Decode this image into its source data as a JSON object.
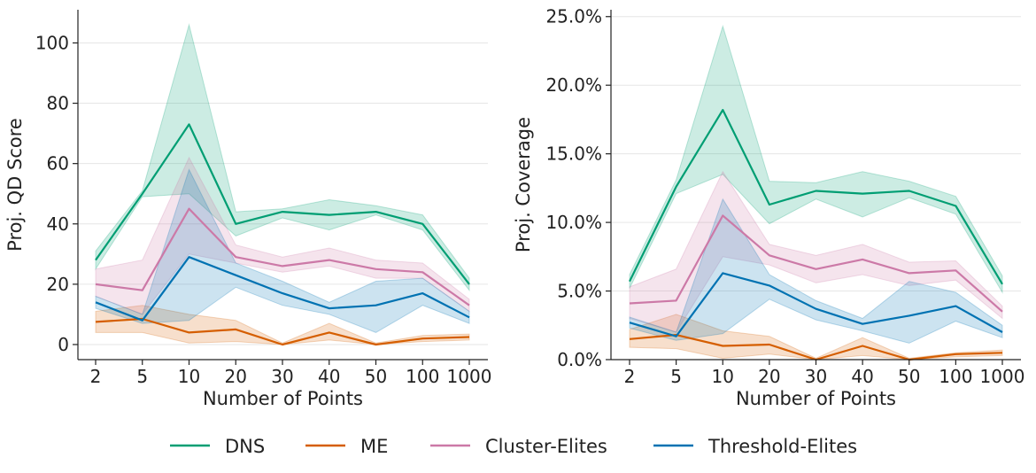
{
  "chart_data": [
    {
      "type": "line",
      "xlabel": "Number of Points",
      "ylabel": "Proj. QD Score",
      "categories": [
        "2",
        "5",
        "10",
        "20",
        "30",
        "40",
        "50",
        "100",
        "1000"
      ],
      "ylim": [
        -5,
        111
      ],
      "yticks": [
        0,
        20,
        40,
        60,
        80,
        100
      ],
      "ytick_labels": [
        "0",
        "20",
        "40",
        "60",
        "80",
        "100"
      ],
      "grid": "horizontal",
      "series": [
        {
          "name": "DNS",
          "color": "#009e73",
          "values": [
            28,
            50,
            73,
            40,
            44,
            43,
            44,
            40,
            20
          ],
          "lower": [
            25,
            49,
            50,
            36,
            42,
            38,
            43,
            38,
            18
          ],
          "upper": [
            31,
            51,
            106,
            44,
            45,
            48,
            46,
            43,
            22
          ]
        },
        {
          "name": "ME",
          "color": "#d55e00",
          "values": [
            7.5,
            8.5,
            4,
            5,
            0,
            4,
            0,
            2,
            2.5
          ],
          "lower": [
            4,
            4,
            0.5,
            1,
            0,
            1.5,
            0,
            1,
            1.5
          ],
          "upper": [
            11,
            13,
            10,
            8,
            0.5,
            7,
            0.5,
            3,
            3.5
          ]
        },
        {
          "name": "Cluster-Elites",
          "color": "#cc79a7",
          "values": [
            20,
            18,
            45,
            29,
            26,
            28,
            25,
            24,
            13
          ],
          "lower": [
            16,
            10,
            30,
            27,
            24,
            26,
            22,
            22,
            11
          ],
          "upper": [
            25,
            28,
            62,
            33,
            29,
            32,
            28,
            27,
            15
          ]
        },
        {
          "name": "Threshold-Elites",
          "color": "#0072b2",
          "values": [
            14,
            8,
            29,
            23,
            17,
            12,
            13,
            17,
            9
          ],
          "lower": [
            12,
            7,
            8,
            19,
            13,
            10,
            4,
            13,
            7
          ],
          "upper": [
            16,
            10,
            58,
            27,
            21,
            14,
            21,
            22,
            11
          ]
        }
      ]
    },
    {
      "type": "line",
      "xlabel": "Number of Points",
      "ylabel": "Proj. Coverage",
      "categories": [
        "2",
        "5",
        "10",
        "20",
        "30",
        "40",
        "50",
        "100",
        "1000"
      ],
      "ylim": [
        0,
        25.5
      ],
      "yticks": [
        0,
        5,
        10,
        15,
        20,
        25
      ],
      "ytick_labels": [
        "0.0%",
        "5.0%",
        "10.0%",
        "15.0%",
        "20.0%",
        "25.0%"
      ],
      "grid": "horizontal",
      "series": [
        {
          "name": "DNS",
          "color": "#009e73",
          "values": [
            5.7,
            12.6,
            18.2,
            11.3,
            12.3,
            12.1,
            12.3,
            11.2,
            5.5
          ],
          "lower": [
            5.2,
            12.1,
            13.5,
            9.9,
            11.7,
            10.4,
            11.8,
            10.6,
            4.9
          ],
          "upper": [
            6.2,
            13.1,
            24.3,
            13.0,
            12.9,
            13.7,
            13.0,
            11.9,
            6.1
          ]
        },
        {
          "name": "ME",
          "color": "#d55e00",
          "values": [
            1.5,
            1.8,
            1.0,
            1.1,
            0,
            1.0,
            0,
            0.4,
            0.5
          ],
          "lower": [
            0.9,
            0.8,
            0.1,
            0.4,
            0,
            0.3,
            0,
            0.2,
            0.3
          ],
          "upper": [
            2.2,
            3.3,
            2.1,
            1.7,
            0.1,
            1.6,
            0.1,
            0.5,
            0.7
          ]
        },
        {
          "name": "Cluster-Elites",
          "color": "#cc79a7",
          "values": [
            4.1,
            4.3,
            10.5,
            7.6,
            6.6,
            7.3,
            6.3,
            6.5,
            3.5
          ],
          "lower": [
            3.0,
            2.0,
            7.5,
            6.9,
            5.6,
            6.2,
            5.4,
            5.8,
            3.0
          ],
          "upper": [
            5.3,
            6.6,
            13.7,
            8.4,
            7.6,
            8.4,
            7.1,
            7.2,
            3.9
          ]
        },
        {
          "name": "Threshold-Elites",
          "color": "#0072b2",
          "values": [
            2.7,
            1.7,
            6.3,
            5.4,
            3.7,
            2.6,
            3.2,
            3.9,
            2.0
          ],
          "lower": [
            2.3,
            1.4,
            1.9,
            4.4,
            2.9,
            2.1,
            1.2,
            2.8,
            1.6
          ],
          "upper": [
            3.1,
            2.0,
            11.7,
            6.2,
            4.3,
            3.0,
            5.7,
            4.9,
            2.5
          ]
        }
      ]
    }
  ]
}
